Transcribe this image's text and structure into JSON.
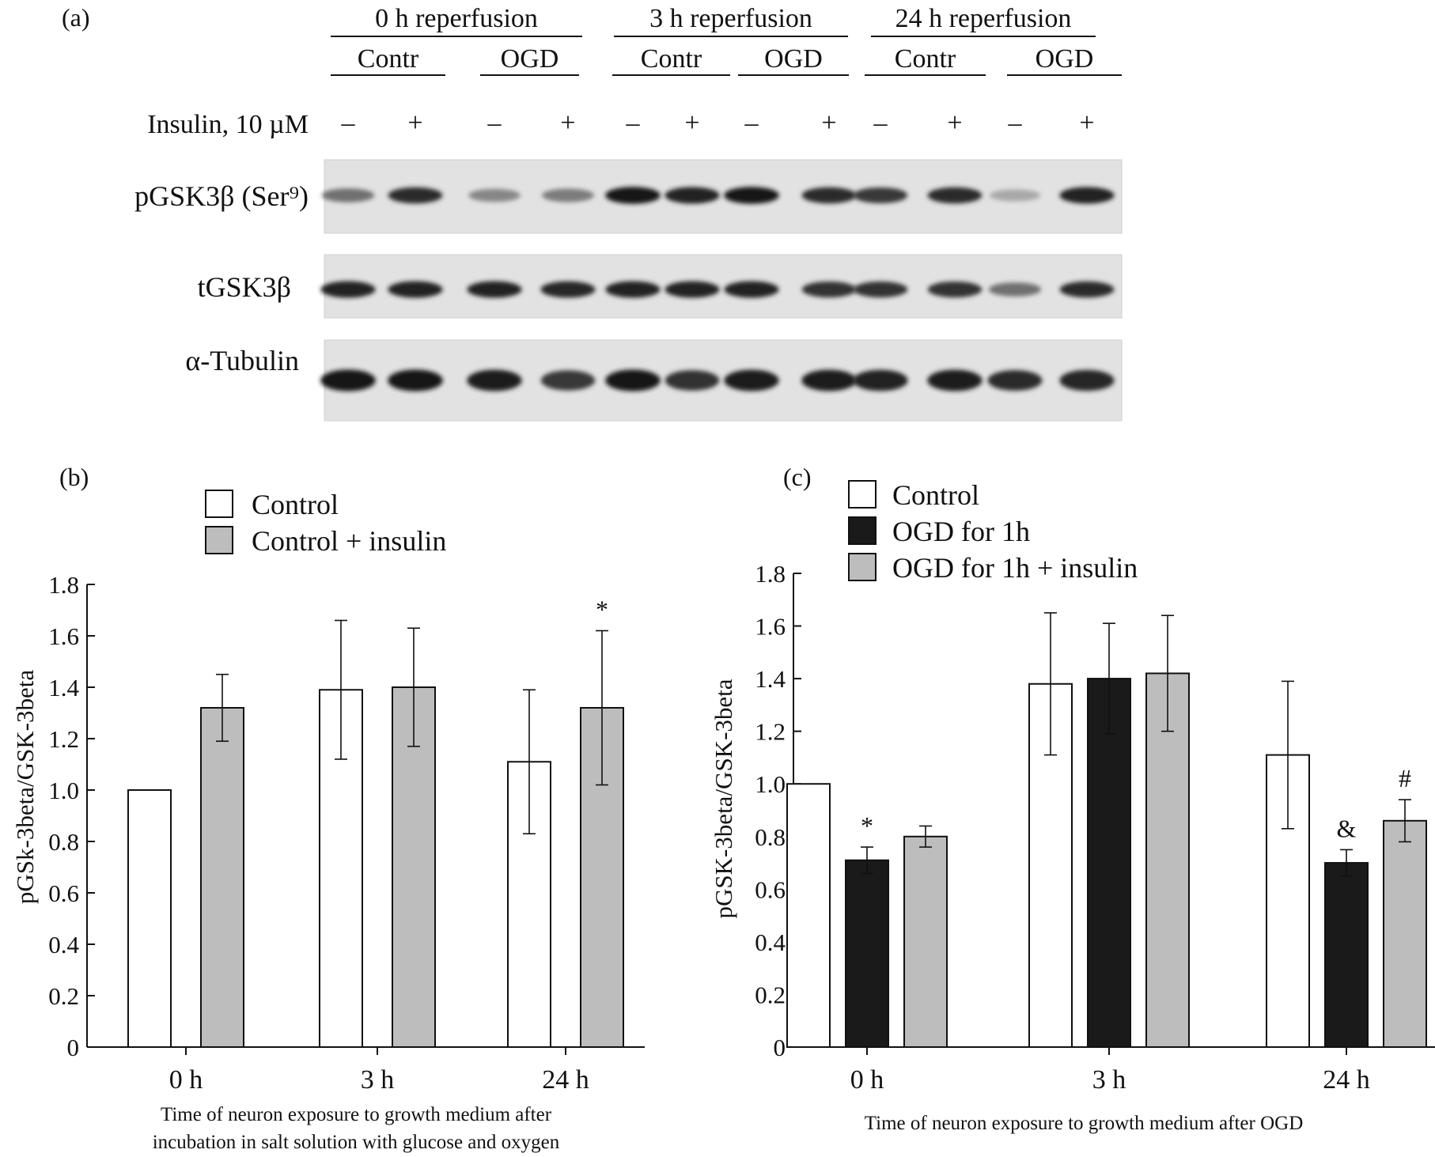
{
  "panel_a": {
    "label": "(a)",
    "groups": [
      {
        "label": "0 h reperfusion",
        "subgroups": [
          "Contr",
          "OGD"
        ]
      },
      {
        "label": "3 h reperfusion",
        "subgroups": [
          "Contr",
          "OGD"
        ]
      },
      {
        "label": "24 h reperfusion",
        "subgroups": [
          "Contr",
          "OGD"
        ]
      }
    ],
    "treatment_label": "Insulin, 10 µM",
    "treatment": [
      "–",
      "+",
      "–",
      "+",
      "–",
      "+",
      "–",
      "+",
      "–",
      "+",
      "–",
      "+"
    ],
    "blots": [
      {
        "name": "pGSK3β (Ser⁹)",
        "intensity": [
          0.55,
          0.85,
          0.45,
          0.5,
          0.95,
          0.9,
          0.95,
          0.85,
          0.8,
          0.85,
          0.3,
          0.9
        ]
      },
      {
        "name": "tGSK3β",
        "intensity": [
          0.9,
          0.9,
          0.9,
          0.88,
          0.9,
          0.9,
          0.9,
          0.82,
          0.82,
          0.82,
          0.55,
          0.85
        ]
      },
      {
        "name": "α-Tubulin",
        "intensity": [
          0.95,
          0.95,
          0.92,
          0.8,
          0.95,
          0.82,
          0.92,
          0.92,
          0.9,
          0.92,
          0.85,
          0.88
        ]
      }
    ]
  },
  "chart_data": [
    {
      "type": "bar",
      "panel": "(b)",
      "categories": [
        "0 h",
        "3 h",
        "24 h"
      ],
      "series": [
        {
          "name": "Control",
          "color": "#ffffff",
          "values": [
            1.0,
            1.39,
            1.11
          ],
          "errors": [
            null,
            0.27,
            0.28
          ]
        },
        {
          "name": "Control + insulin",
          "color": "#bdbdbd",
          "values": [
            1.32,
            1.4,
            1.32
          ],
          "errors": [
            0.13,
            0.23,
            0.3
          ]
        }
      ],
      "annotations": [
        {
          "text": "*",
          "series": 1,
          "category": 2
        }
      ],
      "ylabel": "pGSk-3beta/GSK-3beta",
      "xlabel_lines": [
        "Time of neuron exposure to growth medium after",
        "incubation in salt solution with glucose and oxygen"
      ],
      "ylim": [
        0,
        1.8
      ],
      "yticks": [
        "0",
        "0.2",
        "0.4",
        "0.6",
        "0.8",
        "1.0",
        "1.2",
        "1.4",
        "1.6",
        "1.8"
      ],
      "legend_position": "top-left"
    },
    {
      "type": "bar",
      "panel": "(c)",
      "categories": [
        "0 h",
        "3 h",
        "24 h"
      ],
      "series": [
        {
          "name": "Control",
          "color": "#ffffff",
          "values": [
            1.0,
            1.38,
            1.11
          ],
          "errors": [
            null,
            0.27,
            0.28
          ]
        },
        {
          "name": "OGD for 1h",
          "color": "#1a1a1a",
          "values": [
            0.71,
            1.4,
            0.7
          ],
          "errors": [
            0.05,
            0.21,
            0.05
          ]
        },
        {
          "name": "OGD for 1h + insulin",
          "color": "#bdbdbd",
          "values": [
            0.8,
            1.42,
            0.86
          ],
          "errors": [
            0.04,
            0.22,
            0.08
          ]
        }
      ],
      "annotations": [
        {
          "text": "*",
          "series": 1,
          "category": 0
        },
        {
          "text": "&",
          "series": 1,
          "category": 2
        },
        {
          "text": "#",
          "series": 2,
          "category": 2
        }
      ],
      "ylabel": "pGSK-3beta/GSK-3beta",
      "xlabel": "Time of neuron exposure to growth medium after OGD",
      "ylim": [
        0,
        1.8
      ],
      "yticks": [
        "0",
        "0.2",
        "0.4",
        "0.6",
        "0.8",
        "1.0",
        "1.2",
        "1.4",
        "1.6",
        "1.8"
      ],
      "legend_position": "top-left"
    }
  ]
}
